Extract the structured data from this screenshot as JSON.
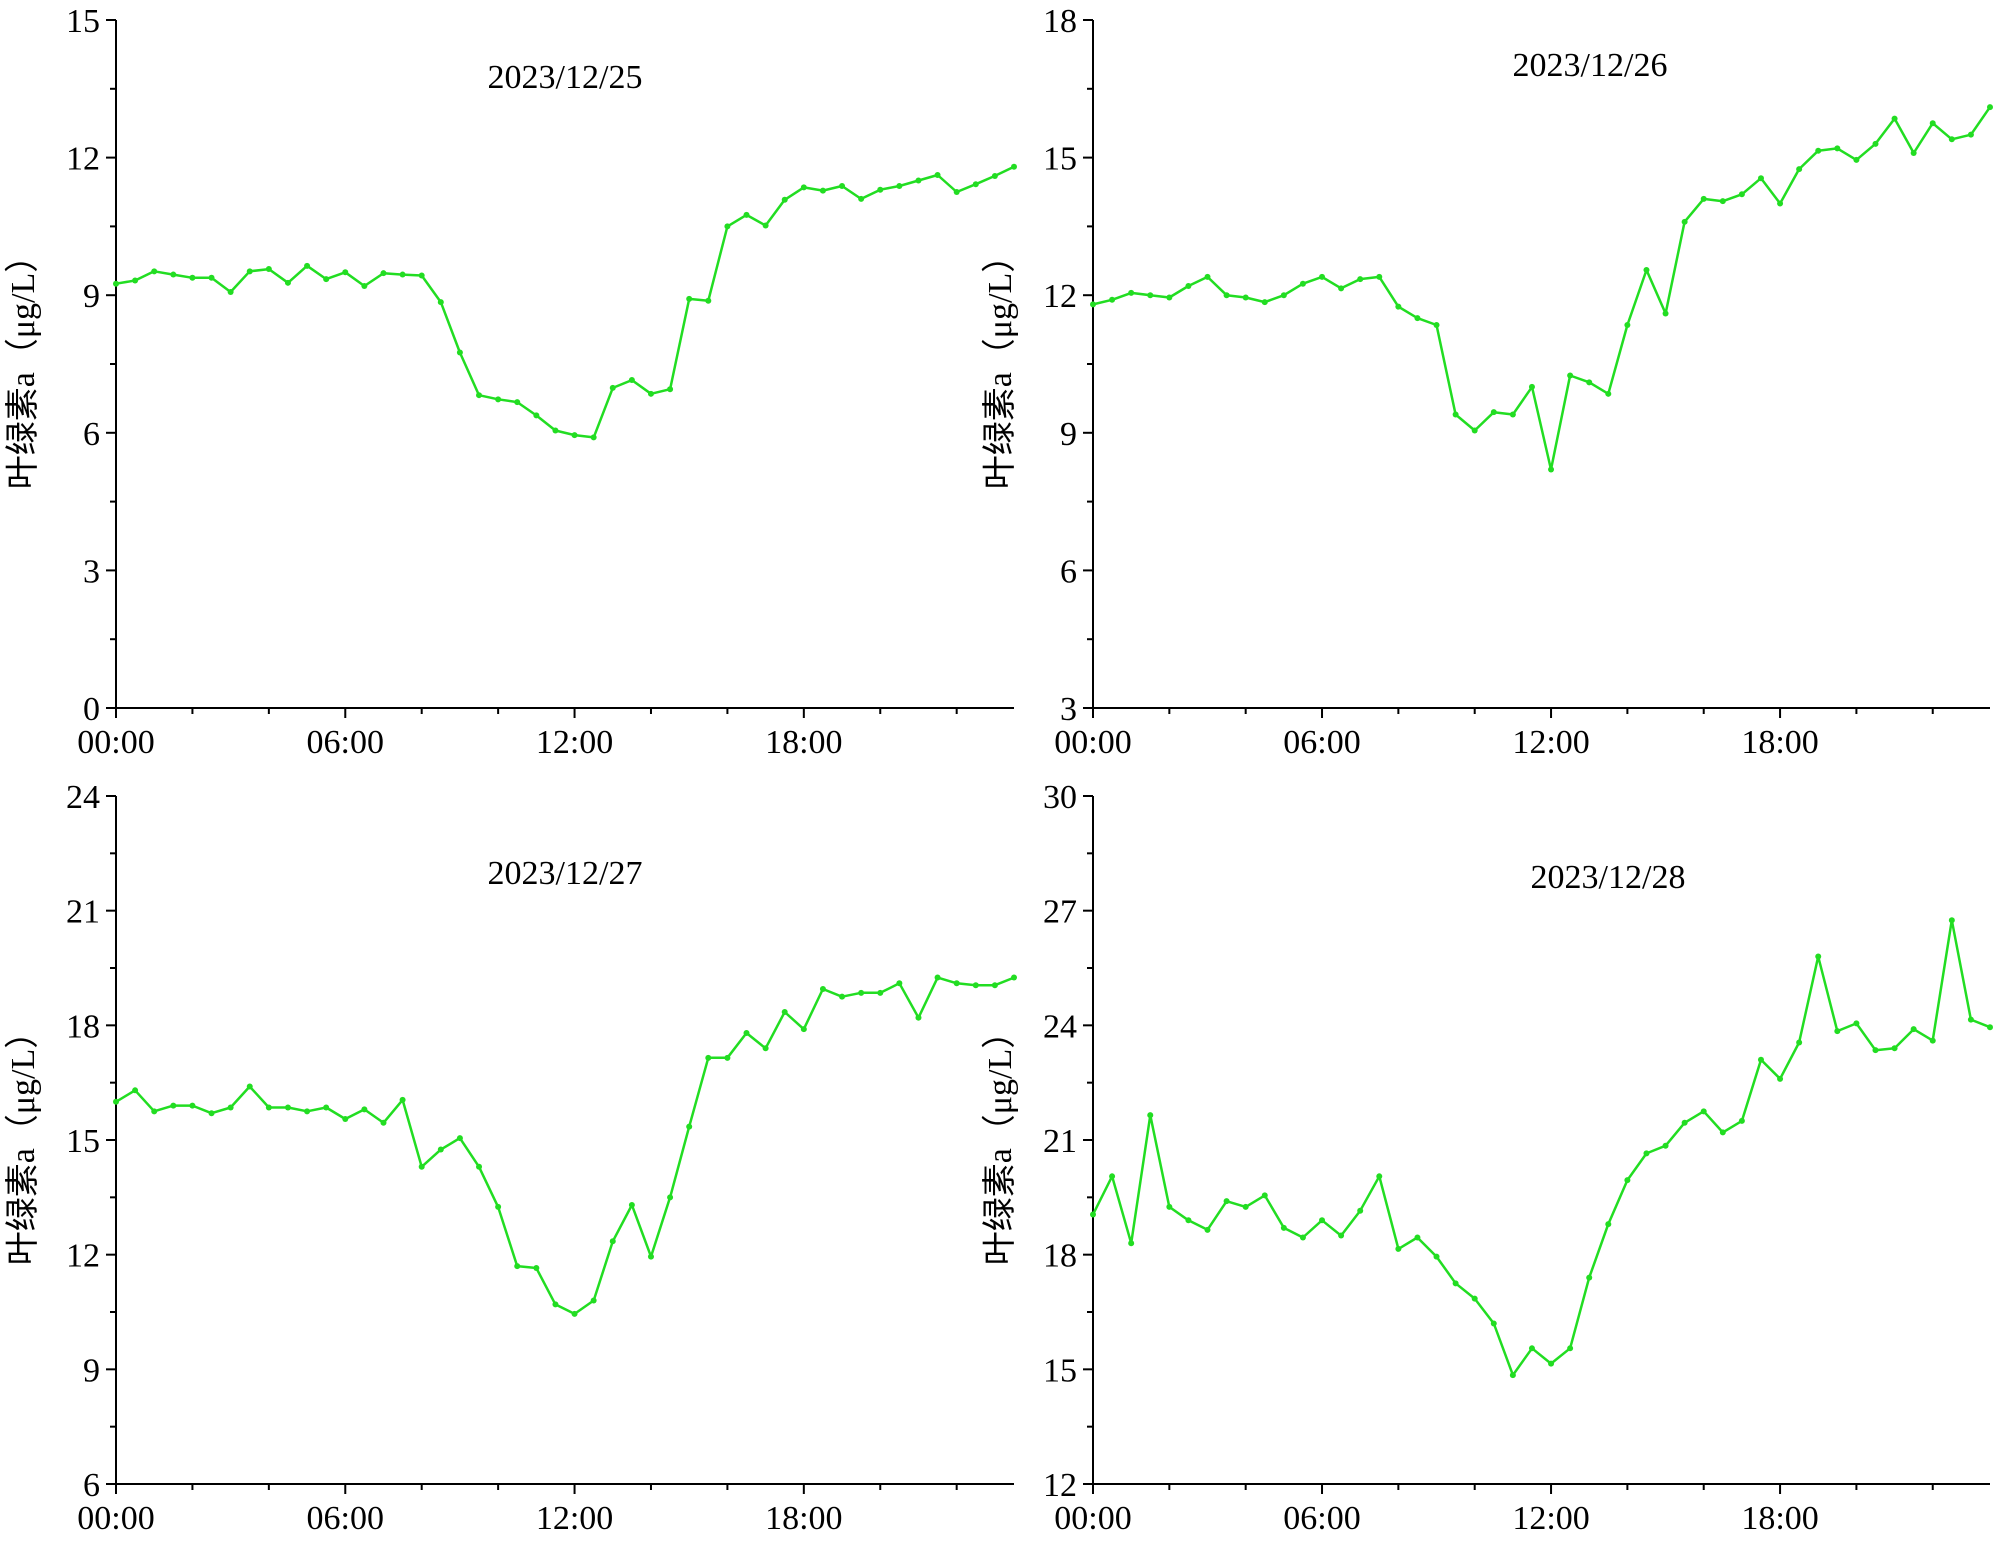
{
  "series_color": "#22DD22",
  "chart_data": [
    {
      "type": "line",
      "title": "2023/12/25",
      "xlabel": "",
      "ylabel": "叶绿素a（μg/L）",
      "xlim": [
        "00:00",
        "23:30"
      ],
      "xticks": [
        "00:00",
        "06:00",
        "12:00",
        "18:00"
      ],
      "ylim": [
        0,
        15
      ],
      "yticks": [
        "0",
        "3",
        "6",
        "9",
        "12",
        "15"
      ],
      "grid": false,
      "legend": "none",
      "x": [
        "00:00",
        "00:30",
        "01:00",
        "01:30",
        "02:00",
        "02:30",
        "03:00",
        "03:30",
        "04:00",
        "04:30",
        "05:00",
        "05:30",
        "06:00",
        "06:30",
        "07:00",
        "07:30",
        "08:00",
        "08:30",
        "09:00",
        "09:30",
        "10:00",
        "10:30",
        "11:00",
        "11:30",
        "12:00",
        "12:30",
        "13:00",
        "13:30",
        "14:00",
        "14:30",
        "15:00",
        "15:30",
        "16:00",
        "16:30",
        "17:00",
        "17:30",
        "18:00",
        "18:30",
        "19:00",
        "19:30",
        "20:00",
        "20:30",
        "21:00",
        "21:30",
        "22:00",
        "22:30",
        "23:00",
        "23:30"
      ],
      "values": [
        9.25,
        9.32,
        9.52,
        9.45,
        9.38,
        9.38,
        9.07,
        9.52,
        9.57,
        9.27,
        9.64,
        9.35,
        9.5,
        9.2,
        9.48,
        9.45,
        9.43,
        8.85,
        7.75,
        6.82,
        6.73,
        6.67,
        6.38,
        6.05,
        5.95,
        5.9,
        6.98,
        7.15,
        6.85,
        6.95,
        8.92,
        8.88,
        10.5,
        10.75,
        10.52,
        11.08,
        11.35,
        11.28,
        11.38,
        11.1,
        11.3,
        11.38,
        11.5,
        11.62,
        11.25,
        11.42,
        11.6,
        11.8
      ]
    },
    {
      "type": "line",
      "title": "2023/12/26",
      "xlabel": "",
      "ylabel": "叶绿素a（μg/L）",
      "xlim": [
        "00:00",
        "23:30"
      ],
      "xticks": [
        "00:00",
        "06:00",
        "12:00",
        "18:00"
      ],
      "ylim": [
        3,
        18
      ],
      "yticks": [
        "3",
        "6",
        "9",
        "12",
        "15",
        "18"
      ],
      "grid": false,
      "legend": "none",
      "x": [
        "00:00",
        "00:30",
        "01:00",
        "01:30",
        "02:00",
        "02:30",
        "03:00",
        "03:30",
        "04:00",
        "04:30",
        "05:00",
        "05:30",
        "06:00",
        "06:30",
        "07:00",
        "07:30",
        "08:00",
        "08:30",
        "09:00",
        "09:30",
        "10:00",
        "10:30",
        "11:00",
        "11:30",
        "12:00",
        "12:30",
        "13:00",
        "13:30",
        "14:00",
        "14:30",
        "15:00",
        "15:30",
        "16:00",
        "16:30",
        "17:00",
        "17:30",
        "18:00",
        "18:30",
        "19:00",
        "19:30",
        "20:00",
        "20:30",
        "21:00",
        "21:30",
        "22:00",
        "22:30",
        "23:00",
        "23:30"
      ],
      "values": [
        11.8,
        11.9,
        12.05,
        12.0,
        11.95,
        12.2,
        12.4,
        12.0,
        11.95,
        11.85,
        12.0,
        12.25,
        12.4,
        12.15,
        12.35,
        12.4,
        11.75,
        11.5,
        11.35,
        9.4,
        9.05,
        9.45,
        9.4,
        10.0,
        8.2,
        10.25,
        10.1,
        9.85,
        11.35,
        12.55,
        11.6,
        13.6,
        14.1,
        14.05,
        14.2,
        14.55,
        14.0,
        14.75,
        15.15,
        15.2,
        14.95,
        15.3,
        15.85,
        15.1,
        15.75,
        15.4,
        15.5,
        16.1
      ]
    },
    {
      "type": "line",
      "title": "2023/12/27",
      "xlabel": "",
      "ylabel": "叶绿素a（μg/L）",
      "xlim": [
        "00:00",
        "23:30"
      ],
      "xticks": [
        "00:00",
        "06:00",
        "12:00",
        "18:00"
      ],
      "ylim": [
        6,
        24
      ],
      "yticks": [
        "6",
        "9",
        "12",
        "15",
        "18",
        "21",
        "24"
      ],
      "grid": false,
      "legend": "none",
      "x": [
        "00:00",
        "00:30",
        "01:00",
        "01:30",
        "02:00",
        "02:30",
        "03:00",
        "03:30",
        "04:00",
        "04:30",
        "05:00",
        "05:30",
        "06:00",
        "06:30",
        "07:00",
        "07:30",
        "08:00",
        "08:30",
        "09:00",
        "09:30",
        "10:00",
        "10:30",
        "11:00",
        "11:30",
        "12:00",
        "12:30",
        "13:00",
        "13:30",
        "14:00",
        "14:30",
        "15:00",
        "15:30",
        "16:00",
        "16:30",
        "17:00",
        "17:30",
        "18:00",
        "18:30",
        "19:00",
        "19:30",
        "20:00",
        "20:30",
        "21:00",
        "21:30",
        "22:00",
        "22:30",
        "23:00",
        "23:30"
      ],
      "values": [
        16.0,
        16.3,
        15.75,
        15.9,
        15.9,
        15.7,
        15.85,
        16.4,
        15.85,
        15.85,
        15.75,
        15.85,
        15.55,
        15.8,
        15.45,
        16.05,
        14.3,
        14.75,
        15.05,
        14.3,
        13.25,
        11.7,
        11.65,
        10.7,
        10.45,
        10.8,
        12.35,
        13.3,
        11.95,
        13.5,
        15.35,
        17.15,
        17.15,
        17.8,
        17.4,
        18.35,
        17.9,
        18.95,
        18.75,
        18.85,
        18.85,
        19.1,
        18.2,
        19.25,
        19.1,
        19.05,
        19.05,
        19.25
      ]
    },
    {
      "type": "line",
      "title": "2023/12/28",
      "xlabel": "",
      "ylabel": "叶绿素a（μg/L）",
      "xlim": [
        "00:00",
        "23:30"
      ],
      "xticks": [
        "00:00",
        "06:00",
        "12:00",
        "18:00"
      ],
      "ylim": [
        12,
        30
      ],
      "yticks": [
        "12",
        "15",
        "18",
        "21",
        "24",
        "27",
        "30"
      ],
      "grid": false,
      "legend": "none",
      "x": [
        "00:00",
        "00:30",
        "01:00",
        "01:30",
        "02:00",
        "02:30",
        "03:00",
        "03:30",
        "04:00",
        "04:30",
        "05:00",
        "05:30",
        "06:00",
        "06:30",
        "07:00",
        "07:30",
        "08:00",
        "08:30",
        "09:00",
        "09:30",
        "10:00",
        "10:30",
        "11:00",
        "11:30",
        "12:00",
        "12:30",
        "13:00",
        "13:30",
        "14:00",
        "14:30",
        "15:00",
        "15:30",
        "16:00",
        "16:30",
        "17:00",
        "17:30",
        "18:00",
        "18:30",
        "19:00",
        "19:30",
        "20:00",
        "20:30",
        "21:00",
        "21:30",
        "22:00",
        "22:30",
        "23:00",
        "23:30"
      ],
      "values": [
        19.05,
        20.05,
        18.3,
        21.65,
        19.25,
        18.9,
        18.65,
        19.4,
        19.25,
        19.55,
        18.7,
        18.45,
        18.9,
        18.5,
        19.15,
        20.05,
        18.15,
        18.45,
        17.95,
        17.25,
        16.85,
        16.2,
        14.85,
        15.55,
        15.15,
        15.55,
        17.4,
        18.8,
        19.95,
        20.65,
        20.85,
        21.45,
        21.75,
        21.2,
        21.5,
        23.1,
        22.6,
        23.55,
        25.8,
        23.85,
        24.05,
        23.35,
        23.4,
        23.9,
        23.6,
        26.75,
        24.15,
        23.95
      ]
    }
  ]
}
